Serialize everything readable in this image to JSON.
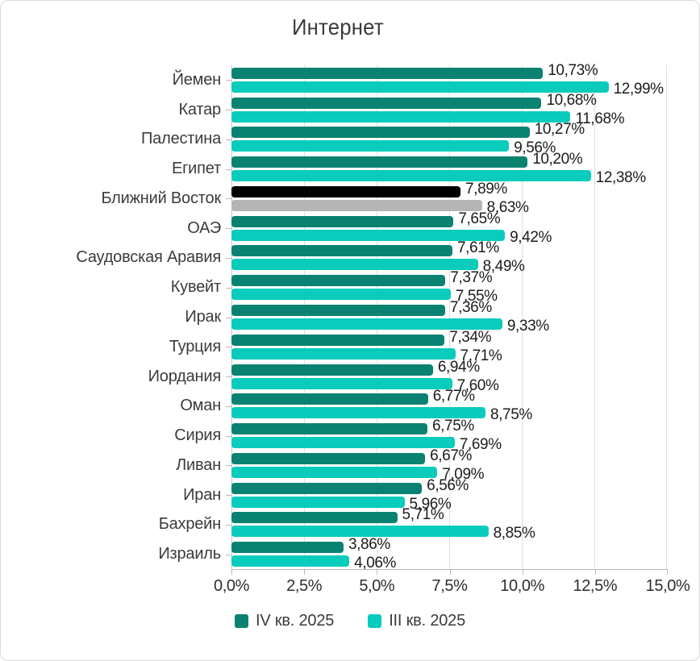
{
  "title": "Интернет",
  "chart_data": {
    "type": "bar",
    "orientation": "horizontal",
    "title": "Интернет",
    "xlabel": "",
    "ylabel": "",
    "xlim": [
      0,
      15
    ],
    "grid": true,
    "legend_position": "bottom",
    "x_tick_values": [
      0,
      2.5,
      5,
      7.5,
      10,
      12.5,
      15
    ],
    "x_ticks": [
      "0,0%",
      "2,5%",
      "5,0%",
      "7,5%",
      "10,0%",
      "12,5%",
      "15,0%"
    ],
    "categories": [
      "Йемен",
      "Катар",
      "Палестина",
      "Египет",
      "Ближний Восток",
      "ОАЭ",
      "Саудовская Аравия",
      "Кувейт",
      "Ирак",
      "Турция",
      "Иордания",
      "Оман",
      "Сирия",
      "Ливан",
      "Иран",
      "Бахрейн",
      "Израиль"
    ],
    "series": [
      {
        "name": "IV кв. 2025",
        "color": "#0a8271",
        "values": [
          10.73,
          10.68,
          10.27,
          10.2,
          7.89,
          7.65,
          7.61,
          7.37,
          7.36,
          7.34,
          6.94,
          6.77,
          6.75,
          6.67,
          6.56,
          5.71,
          3.86
        ],
        "labels": [
          "10,73%",
          "10,68%",
          "10,27%",
          "10,20%",
          "7,89%",
          "7,65%",
          "7,61%",
          "7,37%",
          "7,36%",
          "7,34%",
          "6,94%",
          "6,77%",
          "6,75%",
          "6,67%",
          "6,56%",
          "5,71%",
          "3,86%"
        ]
      },
      {
        "name": "III кв. 2025",
        "color": "#0accbc",
        "values": [
          12.99,
          11.68,
          9.56,
          12.38,
          8.63,
          9.42,
          8.49,
          7.55,
          9.33,
          7.71,
          7.6,
          8.75,
          7.69,
          7.09,
          5.96,
          8.85,
          4.06
        ],
        "labels": [
          "12,99%",
          "11,68%",
          "9,56%",
          "12,38%",
          "8,63%",
          "9,42%",
          "8,49%",
          "7,55%",
          "9,33%",
          "7,71%",
          "7,60%",
          "8,75%",
          "7,69%",
          "7,09%",
          "5,96%",
          "8,85%",
          "4,06%"
        ]
      }
    ],
    "highlight": {
      "category": "Ближний Восток",
      "index": 4,
      "series_colors": [
        "#000000",
        "#b5b5b5"
      ]
    }
  }
}
